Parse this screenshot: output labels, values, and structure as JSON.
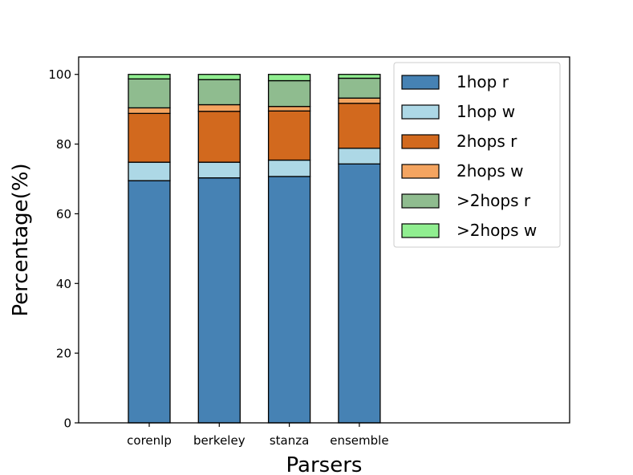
{
  "chart_data": {
    "type": "bar",
    "stacked": true,
    "title": "",
    "xlabel": "Parsers",
    "ylabel": "Percentage(%)",
    "ylim": [
      0,
      105
    ],
    "yticks": [
      "0",
      "20",
      "40",
      "60",
      "80",
      "100"
    ],
    "grid": false,
    "legend_position": "top-right",
    "categories": [
      "corenlp",
      "berkeley",
      "stanza",
      "ensemble"
    ],
    "series": [
      {
        "name": "1hop r",
        "color": "#4682b4",
        "values": [
          69.5,
          70.3,
          70.7,
          74.3
        ]
      },
      {
        "name": "1hop w",
        "color": "#add8e6",
        "values": [
          5.3,
          4.5,
          4.7,
          4.5
        ]
      },
      {
        "name": "2hops r",
        "color": "#d2691e",
        "values": [
          14.0,
          14.6,
          14.1,
          12.9
        ]
      },
      {
        "name": "2hops w",
        "color": "#f4a460",
        "values": [
          1.6,
          1.9,
          1.3,
          1.5
        ]
      },
      {
        "name": ">2hops r",
        "color": "#8fbc8f",
        "values": [
          8.3,
          7.2,
          7.4,
          5.7
        ]
      },
      {
        "name": ">2hops w",
        "color": "#90ee90",
        "values": [
          1.3,
          1.5,
          1.8,
          1.1
        ]
      }
    ]
  }
}
